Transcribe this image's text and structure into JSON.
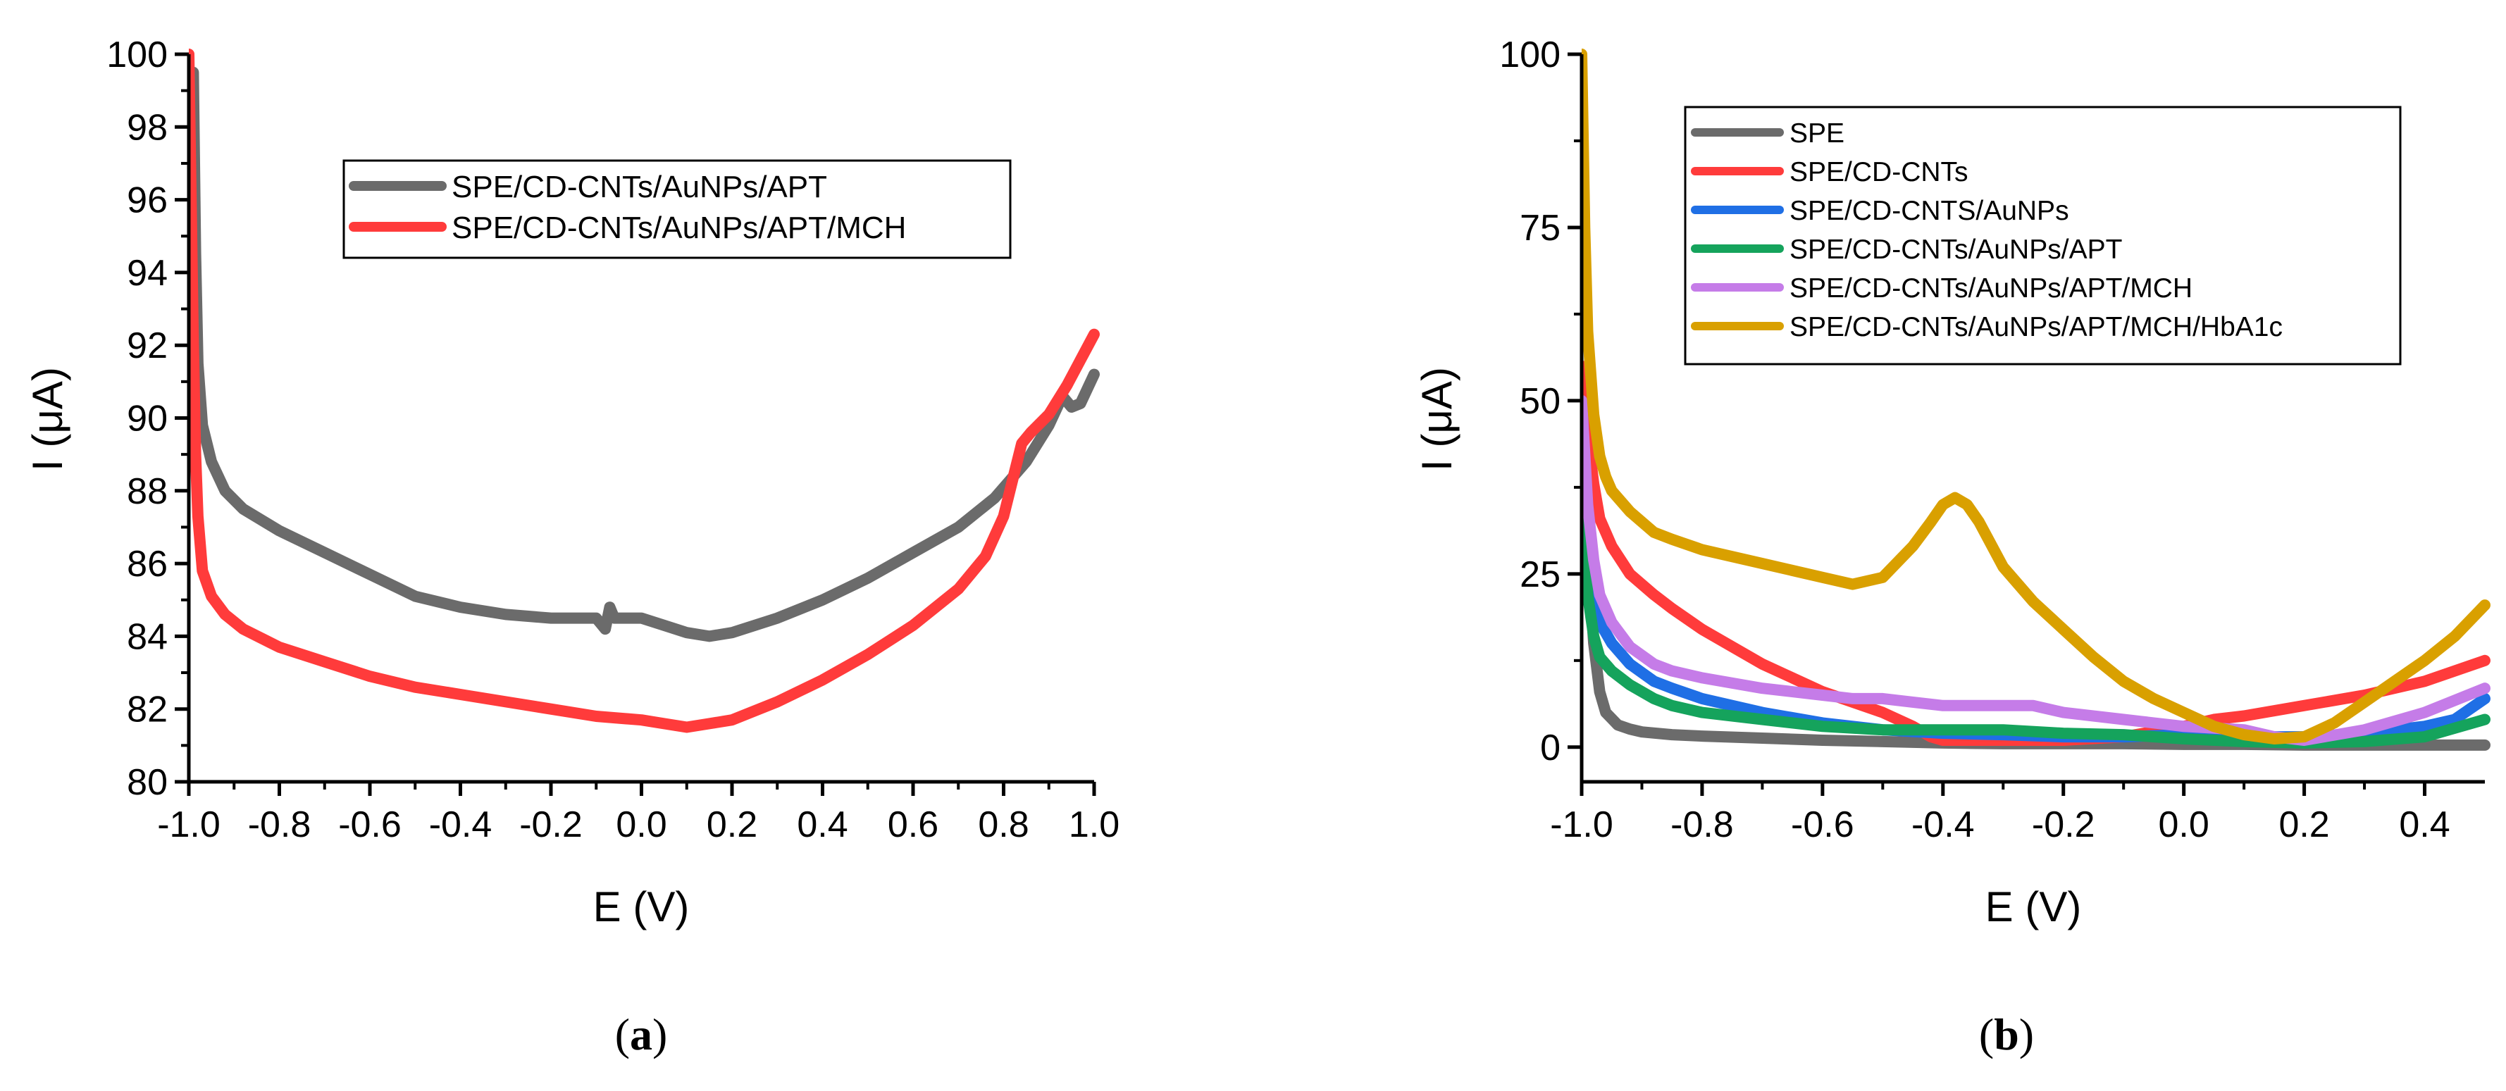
{
  "chart_data": [
    {
      "type": "line",
      "panel_label": "a",
      "xlabel": "E (V)",
      "ylabel": "I (μA)",
      "xlim": [
        -1.0,
        1.0
      ],
      "ylim": [
        80,
        100
      ],
      "x_ticks": [
        -1.0,
        -0.8,
        -0.6,
        -0.4,
        -0.2,
        0.0,
        0.2,
        0.4,
        0.6,
        0.8,
        1.0
      ],
      "x_tick_labels": [
        "-1.0",
        "-0.8",
        "-0.6",
        "-0.4",
        "-0.2",
        "0.0",
        "0.2",
        "0.4",
        "0.6",
        "0.8",
        "1.0"
      ],
      "y_ticks": [
        80,
        82,
        84,
        86,
        88,
        90,
        92,
        94,
        96,
        98,
        100
      ],
      "y_tick_labels": [
        "80",
        "82",
        "84",
        "86",
        "88",
        "90",
        "92",
        "94",
        "96",
        "98",
        "100"
      ],
      "legend_position": "top-center",
      "series": [
        {
          "name": "SPE/CD-CNTs/AuNPs/APT",
          "color": "#6b6b6b",
          "x": [
            -0.99,
            -0.985,
            -0.98,
            -0.97,
            -0.95,
            -0.92,
            -0.88,
            -0.8,
            -0.7,
            -0.6,
            -0.5,
            -0.4,
            -0.3,
            -0.2,
            -0.1,
            -0.08,
            -0.07,
            -0.06,
            -0.05,
            0.0,
            0.05,
            0.1,
            0.15,
            0.2,
            0.3,
            0.4,
            0.5,
            0.6,
            0.7,
            0.78,
            0.85,
            0.9,
            0.93,
            0.95,
            0.97,
            1.0
          ],
          "y": [
            99.5,
            94.5,
            91.5,
            89.8,
            88.8,
            88.0,
            87.5,
            86.9,
            86.3,
            85.7,
            85.1,
            84.8,
            84.6,
            84.5,
            84.5,
            84.2,
            84.8,
            84.5,
            84.5,
            84.5,
            84.3,
            84.1,
            84.0,
            84.1,
            84.5,
            85.0,
            85.6,
            86.3,
            87.0,
            87.8,
            88.8,
            89.8,
            90.6,
            90.3,
            90.4,
            91.2
          ]
        },
        {
          "name": "SPE/CD-CNTs/AuNPs/APT/MCH",
          "color": "#ff3b3b",
          "x": [
            -1.0,
            -0.995,
            -0.99,
            -0.985,
            -0.98,
            -0.97,
            -0.95,
            -0.92,
            -0.88,
            -0.8,
            -0.7,
            -0.6,
            -0.5,
            -0.4,
            -0.3,
            -0.2,
            -0.1,
            0.0,
            0.05,
            0.1,
            0.15,
            0.2,
            0.3,
            0.4,
            0.5,
            0.6,
            0.7,
            0.76,
            0.8,
            0.82,
            0.84,
            0.86,
            0.9,
            0.94,
            0.97,
            1.0
          ],
          "y": [
            100,
            96.0,
            92.0,
            89.0,
            87.3,
            85.8,
            85.1,
            84.6,
            84.2,
            83.7,
            83.3,
            82.9,
            82.6,
            82.4,
            82.2,
            82.0,
            81.8,
            81.7,
            81.6,
            81.5,
            81.6,
            81.7,
            82.2,
            82.8,
            83.5,
            84.3,
            85.3,
            86.2,
            87.3,
            88.3,
            89.3,
            89.6,
            90.1,
            90.9,
            91.6,
            92.3
          ]
        }
      ]
    },
    {
      "type": "line",
      "panel_label": "b",
      "xlabel": "E (V)",
      "ylabel": "I (μA)",
      "xlim": [
        -1.0,
        0.5
      ],
      "ylim": [
        -5,
        100
      ],
      "x_ticks": [
        -1.0,
        -0.8,
        -0.6,
        -0.4,
        -0.2,
        0.0,
        0.2,
        0.4
      ],
      "x_tick_labels": [
        "-1.0",
        "-0.8",
        "-0.6",
        "-0.4",
        "-0.2",
        "0.0",
        "0.2",
        "0.4"
      ],
      "y_ticks": [
        0,
        25,
        50,
        75,
        100
      ],
      "y_tick_labels": [
        "0",
        "25",
        "50",
        "75",
        "100"
      ],
      "legend_position": "top-center",
      "series": [
        {
          "name": "SPE",
          "color": "#6b6b6b",
          "x": [
            -1.0,
            -0.99,
            -0.98,
            -0.97,
            -0.96,
            -0.94,
            -0.92,
            -0.9,
            -0.85,
            -0.8,
            -0.7,
            -0.6,
            -0.5,
            -0.4,
            -0.3,
            -0.2,
            -0.1,
            0.0,
            0.1,
            0.2,
            0.3,
            0.4,
            0.5
          ],
          "y": [
            45,
            28,
            15,
            8,
            5,
            3.2,
            2.6,
            2.2,
            1.8,
            1.6,
            1.3,
            1.0,
            0.8,
            0.6,
            0.5,
            0.5,
            0.5,
            0.4,
            0.4,
            0.3,
            0.3,
            0.3,
            0.3
          ]
        },
        {
          "name": "SPE/CD-CNTs",
          "color": "#ff3b3b",
          "x": [
            -1.0,
            -0.99,
            -0.98,
            -0.97,
            -0.95,
            -0.92,
            -0.88,
            -0.85,
            -0.8,
            -0.7,
            -0.6,
            -0.5,
            -0.45,
            -0.42,
            -0.4,
            -0.3,
            -0.2,
            -0.1,
            0.0,
            0.05,
            0.1,
            0.2,
            0.3,
            0.4,
            0.5
          ],
          "y": [
            55,
            45,
            38,
            33,
            29,
            25,
            22,
            20,
            17,
            12,
            8,
            5,
            3,
            1.5,
            1,
            1,
            1,
            1.5,
            3,
            4,
            4.5,
            6,
            7.5,
            9.5,
            12.5
          ]
        },
        {
          "name": "SPE/CD-CNTS/AuNPs",
          "color": "#1f6fe5",
          "x": [
            -1.0,
            -0.99,
            -0.98,
            -0.97,
            -0.95,
            -0.92,
            -0.88,
            -0.85,
            -0.8,
            -0.7,
            -0.6,
            -0.5,
            -0.4,
            -0.3,
            -0.2,
            -0.1,
            0.0,
            0.1,
            0.2,
            0.3,
            0.4,
            0.45,
            0.5
          ],
          "y": [
            45,
            30,
            22,
            18,
            15,
            12,
            9.5,
            8.5,
            7,
            5,
            3.5,
            2.5,
            2,
            1.8,
            1.5,
            1.5,
            1.8,
            1.5,
            1.5,
            2,
            3,
            4,
            7
          ]
        },
        {
          "name": "SPE/CD-CNTs/AuNPs/APT",
          "color": "#15a35c",
          "x": [
            -1.0,
            -0.99,
            -0.98,
            -0.97,
            -0.95,
            -0.92,
            -0.88,
            -0.85,
            -0.8,
            -0.7,
            -0.6,
            -0.5,
            -0.4,
            -0.3,
            -0.2,
            -0.1,
            0.0,
            0.1,
            0.2,
            0.3,
            0.4,
            0.5
          ],
          "y": [
            40,
            22,
            16,
            13,
            11,
            9,
            7,
            6,
            5,
            4,
            3,
            2.5,
            2.5,
            2.5,
            2,
            1.8,
            1.2,
            0.8,
            0.6,
            0.8,
            1.5,
            4
          ]
        },
        {
          "name": "SPE/CD-CNTs/AuNPs/APT/MCH",
          "color": "#c57ce8",
          "x": [
            -1.0,
            -0.99,
            -0.98,
            -0.97,
            -0.95,
            -0.92,
            -0.88,
            -0.85,
            -0.8,
            -0.7,
            -0.6,
            -0.55,
            -0.5,
            -0.45,
            -0.4,
            -0.35,
            -0.3,
            -0.25,
            -0.2,
            -0.1,
            0.0,
            0.1,
            0.15,
            0.2,
            0.3,
            0.4,
            0.5
          ],
          "y": [
            50,
            35,
            27,
            22,
            18,
            14.5,
            12,
            11,
            10,
            8.5,
            7.5,
            7,
            7,
            6.5,
            6,
            6,
            6,
            6,
            5,
            4,
            3,
            2.5,
            1.5,
            1,
            2.5,
            5,
            8.5
          ]
        },
        {
          "name": "SPE/CD-CNTs/AuNPs/APT/MCH/HbA1c",
          "color": "#d9a000",
          "x": [
            -1.0,
            -0.995,
            -0.99,
            -0.98,
            -0.97,
            -0.96,
            -0.95,
            -0.92,
            -0.88,
            -0.85,
            -0.8,
            -0.7,
            -0.6,
            -0.55,
            -0.5,
            -0.45,
            -0.42,
            -0.4,
            -0.38,
            -0.36,
            -0.34,
            -0.3,
            -0.25,
            -0.2,
            -0.15,
            -0.1,
            -0.05,
            0.0,
            0.05,
            0.1,
            0.15,
            0.2,
            0.25,
            0.3,
            0.35,
            0.4,
            0.45,
            0.5
          ],
          "y": [
            100,
            75,
            60,
            48,
            42,
            39,
            37,
            34,
            31,
            30,
            28.5,
            26.5,
            24.5,
            23.5,
            24.5,
            29,
            32.5,
            35,
            36,
            35,
            32.5,
            26,
            21,
            17,
            13,
            9.5,
            7,
            5,
            3,
            1.8,
            1.2,
            1.5,
            3.5,
            6.5,
            9.5,
            12.5,
            16,
            20.5
          ]
        }
      ]
    }
  ]
}
